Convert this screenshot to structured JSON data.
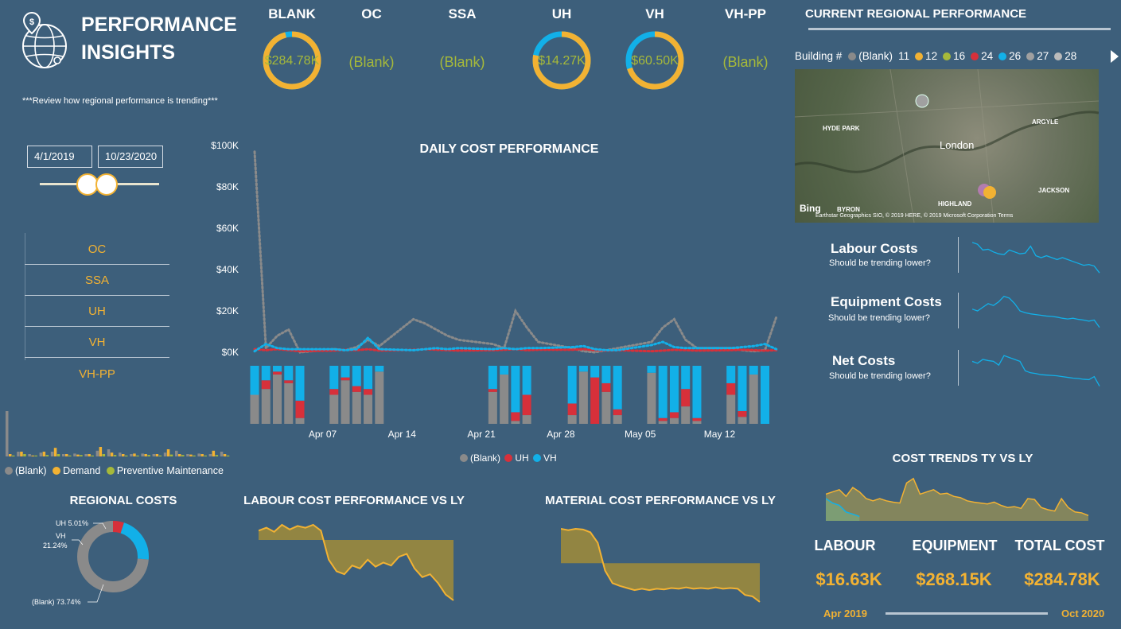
{
  "header": {
    "title_line1": "PERFORMANCE",
    "title_line2": "INSIGHTS",
    "subtitle": "***Review how regional performance is trending***"
  },
  "kpis": [
    {
      "name": "BLANK",
      "value": "$284.78K",
      "ring": true,
      "fraction": 0.96
    },
    {
      "name": "OC",
      "value": "(Blank)",
      "ring": false
    },
    {
      "name": "SSA",
      "value": "(Blank)",
      "ring": false
    },
    {
      "name": "UH",
      "value": "$14.27K",
      "ring": true,
      "fraction": 0.78
    },
    {
      "name": "VH",
      "value": "$60.50K",
      "ring": true,
      "fraction": 0.7
    },
    {
      "name": "VH-PP",
      "value": "(Blank)",
      "ring": false
    }
  ],
  "date_range": {
    "start": "4/1/2019",
    "end": "10/23/2020"
  },
  "region_slicer": [
    "OC",
    "SSA",
    "UH",
    "VH",
    "VH-PP"
  ],
  "type_legend": [
    "(Blank)",
    "Demand",
    "Preventive Maintenance"
  ],
  "map_section": {
    "title": "CURRENT REGIONAL PERFORMANCE",
    "legend_label": "Building #",
    "buildings": [
      {
        "name": "(Blank)",
        "color": "#8a8a8a"
      },
      {
        "name": "11",
        "color": null
      },
      {
        "name": "12",
        "color": "#f2b233"
      },
      {
        "name": "16",
        "color": "#a6b93a"
      },
      {
        "name": "24",
        "color": "#d7303a"
      },
      {
        "name": "26",
        "color": "#12b0e8"
      },
      {
        "name": "27",
        "color": "#a0a0a0"
      },
      {
        "name": "28",
        "color": "#bbbbbb"
      }
    ],
    "places": [
      "HYDE PARK",
      "ARGYLE",
      "London",
      "HIGHLAND",
      "JACKSON",
      "BYRON"
    ],
    "provider": "Bing",
    "attribution": "Earthstar Geographics SIO, © 2019 HERE, © 2019 Microsoft Corporation  Terms"
  },
  "trend_cards": [
    {
      "title": "Labour Costs",
      "subtitle": "Should be trending lower?"
    },
    {
      "title": "Equipment Costs",
      "subtitle": "Should be trending lower?"
    },
    {
      "title": "Net Costs",
      "subtitle": "Should be trending lower?"
    }
  ],
  "daily_chart_labels": {
    "title": "DAILY COST PERFORMANCE",
    "legend": [
      {
        "name": "(Blank)",
        "color": "#8a8a8a"
      },
      {
        "name": "UH",
        "color": "#d7303a"
      },
      {
        "name": "VH",
        "color": "#12b0e8"
      }
    ]
  },
  "regional_costs": {
    "title": "REGIONAL COSTS",
    "labels": [
      "UH 5.01%",
      "VH",
      "21.24%",
      "(Blank) 73.74%"
    ]
  },
  "labour_vs_ly_title": "LABOUR COST PERFORMANCE VS LY",
  "material_vs_ly_title": "MATERIAL COST PERFORMANCE VS LY",
  "cost_trends_title": "COST TRENDS TY VS LY",
  "totals": [
    {
      "label": "LABOUR",
      "value": "$16.63K"
    },
    {
      "label": "EQUIPMENT",
      "value": "$268.15K"
    },
    {
      "label": "TOTAL COST",
      "value": "$284.78K"
    }
  ],
  "period": {
    "start": "Apr 2019",
    "end": "Oct 2020"
  },
  "colors": {
    "background": "#3d5f7b",
    "accent": "#f2b233",
    "green": "#a6b93a",
    "blank": "#8a8a8a",
    "uh": "#d7303a",
    "vh": "#12b0e8"
  },
  "chart_data": [
    {
      "type": "line",
      "title": "DAILY COST PERFORMANCE",
      "ylabel": "",
      "ylim": [
        0,
        100000
      ],
      "yticks": [
        "$0K",
        "$20K",
        "$40K",
        "$60K",
        "$80K",
        "$100K"
      ],
      "xticks": [
        "Apr 07",
        "Apr 14",
        "Apr 21",
        "Apr 28",
        "May 05",
        "May 12"
      ],
      "x": [
        "Apr 01",
        "Apr 02",
        "Apr 03",
        "Apr 04",
        "Apr 05",
        "Apr 08",
        "Apr 09",
        "Apr 10",
        "Apr 11",
        "Apr 12",
        "Apr 15",
        "Apr 16",
        "Apr 17",
        "Apr 18",
        "Apr 19",
        "Apr 22",
        "Apr 23",
        "Apr 24",
        "Apr 25",
        "Apr 26",
        "Apr 29",
        "Apr 30",
        "May 01",
        "May 02",
        "May 03",
        "May 06",
        "May 07",
        "May 08",
        "May 09",
        "May 10",
        "May 13",
        "May 14",
        "May 15",
        "May 16",
        "May 17"
      ],
      "series": [
        {
          "name": "(Blank)",
          "values": [
            97000,
            2000,
            8000,
            11000,
            0,
            1500,
            1000,
            2500,
            6000,
            3000,
            16000,
            14000,
            11000,
            8000,
            6000,
            4000,
            2000,
            20000,
            12000,
            5000,
            2000,
            500,
            0,
            1000,
            2000,
            5000,
            12000,
            16000,
            6000,
            2000,
            2000,
            1000,
            500,
            1000,
            17000
          ]
        },
        {
          "name": "UH",
          "values": [
            1500,
            1000,
            1500,
            1000,
            500,
            800,
            1200,
            1000,
            1500,
            800,
            1200,
            1500,
            1200,
            1000,
            800,
            1000,
            1200,
            1500,
            1000,
            1200,
            1200,
            1500,
            1000,
            800,
            1000,
            500,
            800,
            1200,
            1000,
            800,
            1000,
            1200,
            1000,
            800,
            1000
          ]
        },
        {
          "name": "VH",
          "values": [
            500,
            4000,
            2000,
            1500,
            1500,
            1500,
            1000,
            1500,
            7000,
            1500,
            1000,
            1500,
            2000,
            1500,
            2000,
            1500,
            2000,
            1500,
            2000,
            2000,
            2500,
            3000,
            1500,
            1000,
            1000,
            3500,
            5000,
            2500,
            2000,
            2000,
            2000,
            2500,
            3000,
            4000,
            1500
          ]
        }
      ]
    },
    {
      "type": "bar",
      "title": "",
      "description_stack": "100% stacked columns per day",
      "categories": [
        "Apr 01",
        "Apr 02",
        "Apr 03",
        "Apr 04",
        "Apr 05",
        "Apr 08",
        "Apr 09",
        "Apr 10",
        "Apr 11",
        "Apr 12",
        "Apr 22",
        "Apr 23",
        "Apr 24",
        "Apr 25",
        "Apr 29",
        "Apr 30",
        "May 01",
        "May 02",
        "May 03",
        "May 06",
        "May 07",
        "May 08",
        "May 09",
        "May 10",
        "May 13",
        "May 14",
        "May 15",
        "May 16"
      ],
      "series": [
        {
          "name": "(Blank)",
          "values": [
            0.5,
            0.6,
            0.85,
            0.7,
            0.1,
            0.5,
            0.75,
            0.55,
            0.5,
            0.9,
            0.55,
            0.85,
            0.05,
            0.15,
            0.15,
            0.9,
            0.0,
            0.55,
            0.15,
            0.88,
            0.05,
            0.1,
            0.3,
            0.05,
            0.5,
            0.12,
            0.85,
            0.0
          ]
        },
        {
          "name": "UH",
          "values": [
            0.0,
            0.15,
            0.05,
            0.05,
            0.3,
            0.1,
            0.05,
            0.1,
            0.1,
            0.0,
            0.05,
            0.0,
            0.15,
            0.35,
            0.2,
            0.0,
            0.8,
            0.15,
            0.1,
            0.0,
            0.05,
            0.1,
            0.3,
            0.05,
            0.2,
            0.1,
            0.0,
            0.0
          ]
        },
        {
          "name": "VH",
          "values": [
            0.5,
            0.25,
            0.1,
            0.25,
            0.6,
            0.4,
            0.2,
            0.35,
            0.4,
            0.1,
            0.4,
            0.15,
            0.8,
            0.5,
            0.65,
            0.1,
            0.2,
            0.3,
            0.75,
            0.12,
            0.9,
            0.8,
            0.4,
            0.9,
            0.3,
            0.78,
            0.15,
            1.0
          ]
        }
      ]
    },
    {
      "type": "pie",
      "title": "REGIONAL COSTS",
      "categories": [
        "UH",
        "VH",
        "(Blank)"
      ],
      "values": [
        5.01,
        21.24,
        73.74
      ]
    },
    {
      "type": "area",
      "title": "LABOUR COST PERFORMANCE VS LY",
      "values": [
        0.1,
        0.05,
        0.12,
        0.0,
        0.08,
        0.02,
        0.05,
        0.0,
        0.1,
        0.6,
        0.8,
        0.85,
        0.7,
        0.75,
        0.6,
        0.72,
        0.65,
        0.7,
        0.55,
        0.5,
        0.75,
        0.9,
        0.85,
        1.0,
        1.2,
        1.3
      ]
    },
    {
      "type": "area",
      "title": "MATERIAL COST PERFORMANCE VS LY",
      "values": [
        0.0,
        0.02,
        0.0,
        0.01,
        0.05,
        0.2,
        0.6,
        0.78,
        0.82,
        0.85,
        0.88,
        0.86,
        0.88,
        0.86,
        0.87,
        0.85,
        0.86,
        0.84,
        0.86,
        0.85,
        0.86,
        0.84,
        0.86,
        0.85,
        0.86,
        0.95,
        0.97,
        1.05
      ]
    },
    {
      "type": "area",
      "title": "COST TRENDS TY VS LY",
      "series": [
        {
          "name": "TY",
          "values": [
            0.6,
            0.65,
            0.7,
            0.55,
            0.75,
            0.65,
            0.5,
            0.45,
            0.5,
            0.45,
            0.42,
            0.4,
            0.85,
            0.95,
            0.6,
            0.65,
            0.7,
            0.6,
            0.62,
            0.55,
            0.52,
            0.45,
            0.42,
            0.4,
            0.38,
            0.42,
            0.35,
            0.3,
            0.32,
            0.28,
            0.5,
            0.48,
            0.3,
            0.25,
            0.22,
            0.5,
            0.3,
            0.2,
            0.18,
            0.12
          ]
        },
        {
          "name": "LY",
          "values": [
            0.5,
            0.4,
            0.35,
            0.2,
            0.15,
            0.1
          ]
        }
      ]
    },
    {
      "type": "line",
      "title": "Labour Costs",
      "values": [
        0.9,
        0.85,
        0.7,
        0.72,
        0.65,
        0.6,
        0.58,
        0.7,
        0.65,
        0.6,
        0.62,
        0.8,
        0.55,
        0.5,
        0.55,
        0.5,
        0.45,
        0.5,
        0.45,
        0.4,
        0.35,
        0.3,
        0.32,
        0.28,
        0.1
      ]
    },
    {
      "type": "line",
      "title": "Equipment Costs",
      "values": [
        0.55,
        0.5,
        0.6,
        0.7,
        0.65,
        0.75,
        0.9,
        0.85,
        0.7,
        0.5,
        0.45,
        0.42,
        0.4,
        0.38,
        0.36,
        0.35,
        0.33,
        0.3,
        0.28,
        0.3,
        0.27,
        0.25,
        0.22,
        0.25,
        0.05
      ]
    },
    {
      "type": "line",
      "title": "Net Costs",
      "values": [
        0.7,
        0.65,
        0.75,
        0.72,
        0.7,
        0.6,
        0.85,
        0.8,
        0.75,
        0.7,
        0.45,
        0.4,
        0.38,
        0.35,
        0.34,
        0.33,
        0.32,
        0.3,
        0.28,
        0.26,
        0.25,
        0.23,
        0.22,
        0.3,
        0.05
      ]
    },
    {
      "type": "bar",
      "title": "",
      "series": [
        {
          "name": "(Blank)",
          "values": [
            0.95,
            0.1,
            0.05,
            0.08,
            0.1,
            0.05,
            0.06,
            0.05,
            0.12,
            0.15,
            0.08,
            0.05,
            0.06,
            0.05,
            0.08,
            0.12,
            0.05,
            0.06,
            0.05,
            0.1
          ]
        },
        {
          "name": "Demand",
          "values": [
            0.05,
            0.1,
            0.02,
            0.1,
            0.18,
            0.05,
            0.04,
            0.05,
            0.2,
            0.08,
            0.05,
            0.06,
            0.05,
            0.05,
            0.15,
            0.05,
            0.04,
            0.05,
            0.12,
            0.05
          ]
        },
        {
          "name": "Preventive Maintenance",
          "values": [
            0.02,
            0.05,
            0.02,
            0.03,
            0.05,
            0.02,
            0.03,
            0.02,
            0.05,
            0.03,
            0.02,
            0.02,
            0.03,
            0.02,
            0.04,
            0.03,
            0.02,
            0.02,
            0.03,
            0.02
          ]
        }
      ]
    }
  ]
}
